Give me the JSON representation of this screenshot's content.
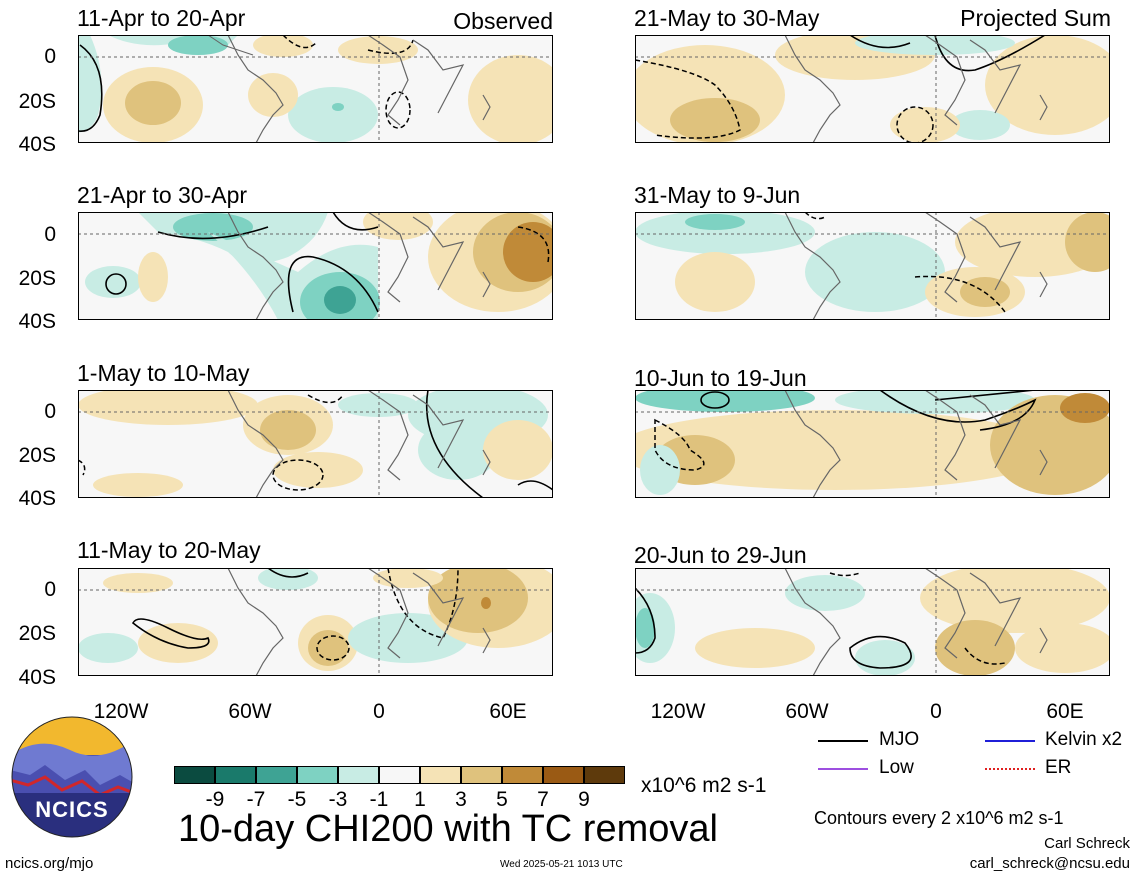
{
  "panels": [
    {
      "id": "p1",
      "title": "11-Apr to 20-Apr",
      "corner": "Observed"
    },
    {
      "id": "p2",
      "title": "21-Apr to 30-Apr",
      "corner": ""
    },
    {
      "id": "p3",
      "title": "1-May to 10-May",
      "corner": ""
    },
    {
      "id": "p4",
      "title": "11-May to 20-May",
      "corner": ""
    },
    {
      "id": "p5",
      "title": "21-May to 30-May",
      "corner": "Projected Sum"
    },
    {
      "id": "p6",
      "title": "31-May to 9-Jun",
      "corner": ""
    },
    {
      "id": "p7",
      "title": "10-Jun to 19-Jun",
      "corner": ""
    },
    {
      "id": "p8",
      "title": "20-Jun to 29-Jun",
      "corner": ""
    }
  ],
  "axes": {
    "y_ticks": [
      "0",
      "20S",
      "40S"
    ],
    "x_ticks": [
      "120W",
      "60W",
      "0",
      "60E"
    ]
  },
  "colorbar": {
    "labels": [
      "-9",
      "-7",
      "-5",
      "-3",
      "-1",
      "1",
      "3",
      "5",
      "7",
      "9"
    ],
    "units": "x10^6 m2 s-1",
    "colors": [
      "#0b4b40",
      "#1a7a6b",
      "#3ea394",
      "#7ed2c2",
      "#c8ece4",
      "#f7f7f7",
      "#f5e3b6",
      "#dfc27d",
      "#c08a38",
      "#9a5a14",
      "#5e3a0c"
    ]
  },
  "title": "10-day CHI200 with TC removal",
  "legend": [
    {
      "label": "MJO",
      "color": "#000000"
    },
    {
      "label": "Kelvin x2",
      "color": "#1f1fd8"
    },
    {
      "label": "Low",
      "color": "#9d4fe0"
    },
    {
      "label": "ER",
      "color": "#e02020"
    }
  ],
  "contour_note": "Contours every 2 x10^6 m2 s-1",
  "author": "Carl Schreck",
  "email": "carl_schreck@ncsu.edu",
  "website": "ncics.org/mjo",
  "timestamp": "Wed 2025-05-21 1013 UTC",
  "logo_text": "NCICS",
  "colors": {
    "positive": "#dfc27d",
    "negative": "#7ed2c2",
    "map": "#666666"
  }
}
